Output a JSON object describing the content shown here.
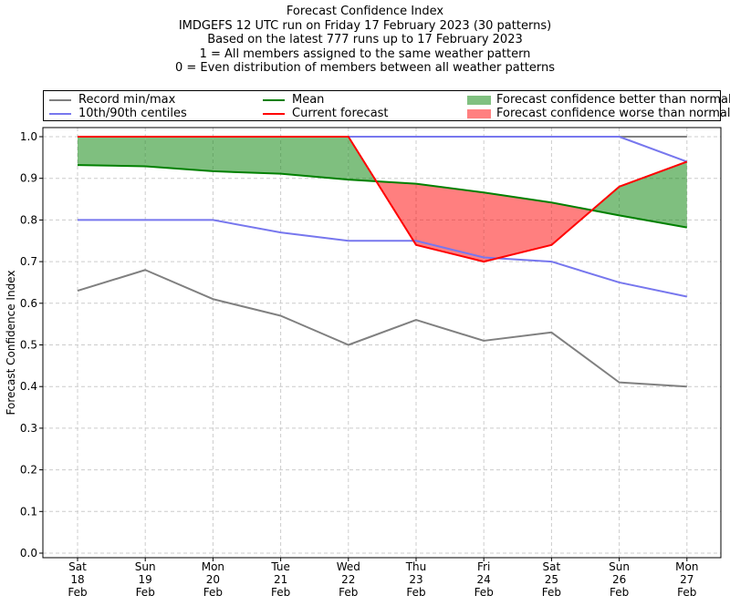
{
  "chart_data": {
    "type": "line",
    "title_lines": [
      "Forecast Confidence Index",
      "IMDGEFS 12 UTC run on Friday 17 February 2023 (30 patterns)",
      "Based on the latest 777 runs up to 17 February 2023",
      "1 = All members assigned to the same weather pattern",
      "0 = Even distribution of members between all weather patterns"
    ],
    "ylabel": "Forecast Confidence Index",
    "xlabel": "",
    "ylim": [
      0.0,
      1.0
    ],
    "yticks": [
      "0.0",
      "0.1",
      "0.2",
      "0.3",
      "0.4",
      "0.5",
      "0.6",
      "0.7",
      "0.8",
      "0.9",
      "1.0"
    ],
    "categories": [
      [
        "Sat",
        "18",
        "Feb"
      ],
      [
        "Sun",
        "19",
        "Feb"
      ],
      [
        "Mon",
        "20",
        "Feb"
      ],
      [
        "Tue",
        "21",
        "Feb"
      ],
      [
        "Wed",
        "22",
        "Feb"
      ],
      [
        "Thu",
        "23",
        "Feb"
      ],
      [
        "Fri",
        "24",
        "Feb"
      ],
      [
        "Sat",
        "25",
        "Feb"
      ],
      [
        "Sun",
        "26",
        "Feb"
      ],
      [
        "Mon",
        "27",
        "Feb"
      ]
    ],
    "grid": true,
    "legend_position": "top",
    "series": [
      {
        "name": "Record min/max",
        "key": "record_max",
        "color": "#808080",
        "values": [
          1.0,
          1.0,
          1.0,
          1.0,
          1.0,
          1.0,
          1.0,
          1.0,
          1.0,
          1.0
        ]
      },
      {
        "name": "Record min/max",
        "key": "record_min",
        "color": "#808080",
        "values": [
          0.63,
          0.68,
          0.61,
          0.57,
          0.5,
          0.56,
          0.51,
          0.53,
          0.41,
          0.4
        ]
      },
      {
        "name": "10th/90th centiles",
        "key": "p90",
        "color": "#7777ee",
        "values": [
          1.0,
          1.0,
          1.0,
          1.0,
          1.0,
          1.0,
          1.0,
          1.0,
          1.0,
          0.94
        ]
      },
      {
        "name": "10th/90th centiles",
        "key": "p10",
        "color": "#7777ee",
        "values": [
          0.8,
          0.8,
          0.8,
          0.77,
          0.75,
          0.75,
          0.71,
          0.7,
          0.65,
          0.616
        ]
      },
      {
        "name": "Mean",
        "key": "mean",
        "color": "#008000",
        "values": [
          0.932,
          0.929,
          0.917,
          0.911,
          0.897,
          0.887,
          0.866,
          0.842,
          0.811,
          0.782
        ]
      },
      {
        "name": "Current forecast",
        "key": "current",
        "color": "#ff0000",
        "values": [
          1.0,
          1.0,
          1.0,
          1.0,
          1.0,
          0.74,
          0.7,
          0.74,
          0.88,
          0.94
        ]
      }
    ],
    "fills": {
      "better": {
        "name": "Forecast confidence better than normal",
        "color": "#008000",
        "opacity": 0.5
      },
      "worse": {
        "name": "Forecast confidence worse than normal",
        "color": "#ff0000",
        "opacity": 0.5
      }
    },
    "legend": [
      {
        "label": "Record min/max",
        "kind": "line",
        "color": "#808080"
      },
      {
        "label": "10th/90th centiles",
        "kind": "line",
        "color": "#7777ee"
      },
      {
        "label": "Mean",
        "kind": "line",
        "color": "#008000"
      },
      {
        "label": "Current forecast",
        "kind": "line",
        "color": "#ff0000"
      },
      {
        "label": "Forecast confidence better than normal",
        "kind": "patch",
        "color": "#80c080"
      },
      {
        "label": "Forecast confidence worse than normal",
        "kind": "patch",
        "color": "#ff8080"
      }
    ]
  }
}
